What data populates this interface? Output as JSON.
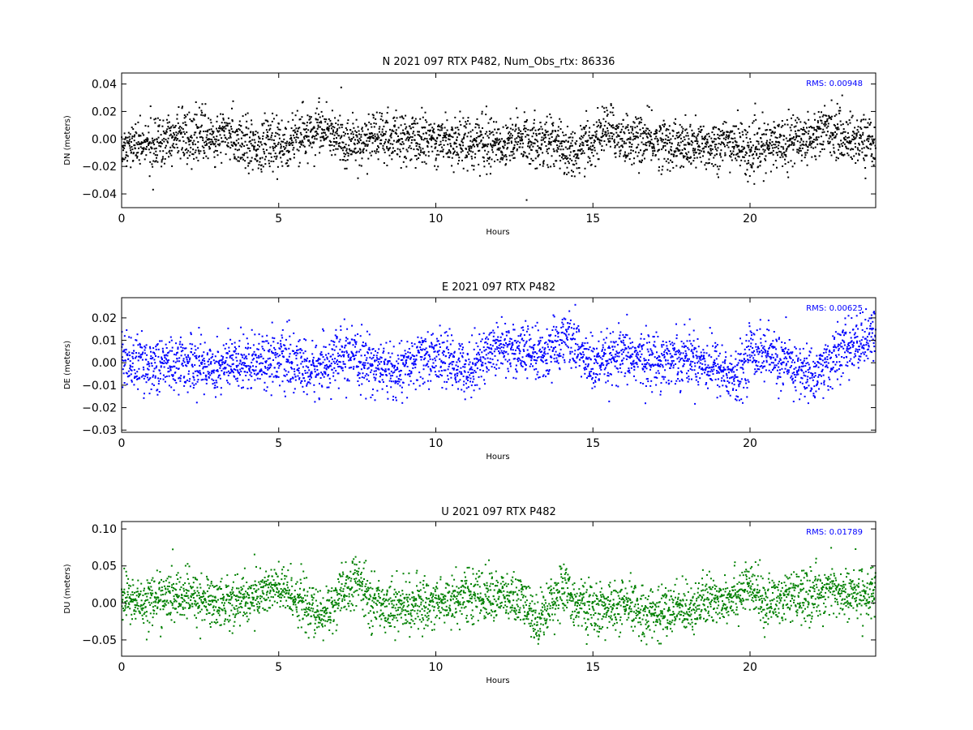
{
  "chart_data": [
    {
      "type": "scatter",
      "title": "N 2021 097 RTX  P482, Num_Obs_rtx: 86336",
      "xlabel": "Hours",
      "ylabel": "DN (meters)",
      "xlim": [
        0,
        24
      ],
      "ylim": [
        -0.05,
        0.048
      ],
      "xticks": [
        0,
        5,
        10,
        15,
        20
      ],
      "xtick_labels": [
        "0",
        "5",
        "10",
        "15",
        "20"
      ],
      "yticks": [
        0.04,
        0.02,
        0.0,
        -0.02,
        -0.04
      ],
      "ytick_labels": [
        "0.04",
        "0.02",
        "0.00",
        "−0.02",
        "−0.04"
      ],
      "rms_label": "RMS:  0.00948",
      "rms": 0.00948,
      "color": "#000000",
      "grid": false,
      "trend": [
        [
          0,
          -0.005
        ],
        [
          0.5,
          -0.006
        ],
        [
          1,
          -0.005
        ],
        [
          1.5,
          0.0
        ],
        [
          2,
          0.003
        ],
        [
          2.5,
          0.002
        ],
        [
          3,
          0.0
        ],
        [
          3.5,
          0.002
        ],
        [
          4,
          -0.002
        ],
        [
          4.3,
          -0.005
        ],
        [
          5,
          -0.004
        ],
        [
          5.5,
          -0.002
        ],
        [
          6,
          0.005
        ],
        [
          6.3,
          0.008
        ],
        [
          6.8,
          0.0
        ],
        [
          7.5,
          -0.004
        ],
        [
          8,
          0.002
        ],
        [
          8.5,
          0.001
        ],
        [
          9,
          -0.001
        ],
        [
          10,
          0.0
        ],
        [
          11,
          -0.002
        ],
        [
          12,
          -0.003
        ],
        [
          13,
          -0.001
        ],
        [
          13.5,
          0.0
        ],
        [
          14,
          -0.006
        ],
        [
          14.5,
          -0.01
        ],
        [
          15,
          -0.002
        ],
        [
          15.4,
          0.008
        ],
        [
          16,
          0.0
        ],
        [
          17,
          -0.002
        ],
        [
          18,
          -0.006
        ],
        [
          19,
          -0.004
        ],
        [
          19.5,
          -0.002
        ],
        [
          20,
          -0.01
        ],
        [
          20.5,
          -0.006
        ],
        [
          21,
          -0.002
        ],
        [
          22,
          0.002
        ],
        [
          22.5,
          0.008
        ],
        [
          23,
          0.001
        ],
        [
          24,
          -0.002
        ]
      ]
    },
    {
      "type": "scatter",
      "title": "E 2021 097 RTX  P482",
      "xlabel": "Hours",
      "ylabel": "DE (meters)",
      "xlim": [
        0,
        24
      ],
      "ylim": [
        -0.031,
        0.029
      ],
      "xticks": [
        0,
        5,
        10,
        15,
        20
      ],
      "xtick_labels": [
        "0",
        "5",
        "10",
        "15",
        "20"
      ],
      "yticks": [
        0.02,
        0.01,
        0.0,
        -0.01,
        -0.02,
        -0.03
      ],
      "ytick_labels": [
        "0.02",
        "0.01",
        "0.00",
        "−0.01",
        "−0.02",
        "−0.03"
      ],
      "rms_label": "RMS:  0.00625",
      "rms": 0.00625,
      "color": "#0000ff",
      "grid": false,
      "trend": [
        [
          0,
          0.001
        ],
        [
          1,
          -0.001
        ],
        [
          2,
          0.0
        ],
        [
          3,
          -0.002
        ],
        [
          4,
          0.001
        ],
        [
          5,
          0.002
        ],
        [
          6,
          -0.004
        ],
        [
          7,
          0.003
        ],
        [
          8,
          -0.001
        ],
        [
          8.8,
          -0.005
        ],
        [
          9.5,
          0.002
        ],
        [
          10,
          0.003
        ],
        [
          11,
          -0.003
        ],
        [
          12,
          0.008
        ],
        [
          12.5,
          0.006
        ],
        [
          13,
          0.004
        ],
        [
          13.5,
          0.003
        ],
        [
          14.2,
          0.012
        ],
        [
          15,
          -0.002
        ],
        [
          16,
          0.003
        ],
        [
          17,
          0.001
        ],
        [
          18,
          0.003
        ],
        [
          19,
          -0.002
        ],
        [
          19.6,
          -0.008
        ],
        [
          20,
          0.006
        ],
        [
          20.5,
          0.004
        ],
        [
          21,
          0.0
        ],
        [
          22,
          -0.006
        ],
        [
          23,
          0.006
        ],
        [
          24,
          0.012
        ]
      ]
    },
    {
      "type": "scatter",
      "title": "U 2021 097 RTX  P482",
      "xlabel": "Hours",
      "ylabel": "DU (meters)",
      "xlim": [
        0,
        24
      ],
      "ylim": [
        -0.072,
        0.11
      ],
      "xticks": [
        0,
        5,
        10,
        15,
        20
      ],
      "xtick_labels": [
        "0",
        "5",
        "10",
        "15",
        "20"
      ],
      "yticks": [
        0.1,
        0.05,
        0.0,
        -0.05
      ],
      "ytick_labels": [
        "0.10",
        "0.05",
        "0.00",
        "−0.05"
      ],
      "rms_label": "RMS:  0.01789",
      "rms": 0.01789,
      "color": "#008000",
      "grid": false,
      "trend": [
        [
          0,
          0.01
        ],
        [
          0.5,
          0.0
        ],
        [
          1,
          0.005
        ],
        [
          2,
          0.01
        ],
        [
          3,
          0.0
        ],
        [
          4,
          0.005
        ],
        [
          4.8,
          0.02
        ],
        [
          5.5,
          0.01
        ],
        [
          6.3,
          -0.02
        ],
        [
          7,
          0.01
        ],
        [
          7.5,
          0.03
        ],
        [
          8,
          0.0
        ],
        [
          9,
          -0.005
        ],
        [
          10,
          0.0
        ],
        [
          11,
          0.01
        ],
        [
          12,
          0.01
        ],
        [
          12.8,
          0.0
        ],
        [
          13.2,
          -0.025
        ],
        [
          14,
          0.02
        ],
        [
          14.5,
          0.0
        ],
        [
          15,
          -0.01
        ],
        [
          16,
          -0.005
        ],
        [
          17,
          -0.015
        ],
        [
          18,
          -0.005
        ],
        [
          19,
          0.005
        ],
        [
          20,
          0.02
        ],
        [
          20.5,
          0.0
        ],
        [
          21,
          0.005
        ],
        [
          22,
          0.01
        ],
        [
          22.5,
          0.02
        ],
        [
          23,
          0.01
        ],
        [
          24,
          0.015
        ]
      ]
    }
  ]
}
